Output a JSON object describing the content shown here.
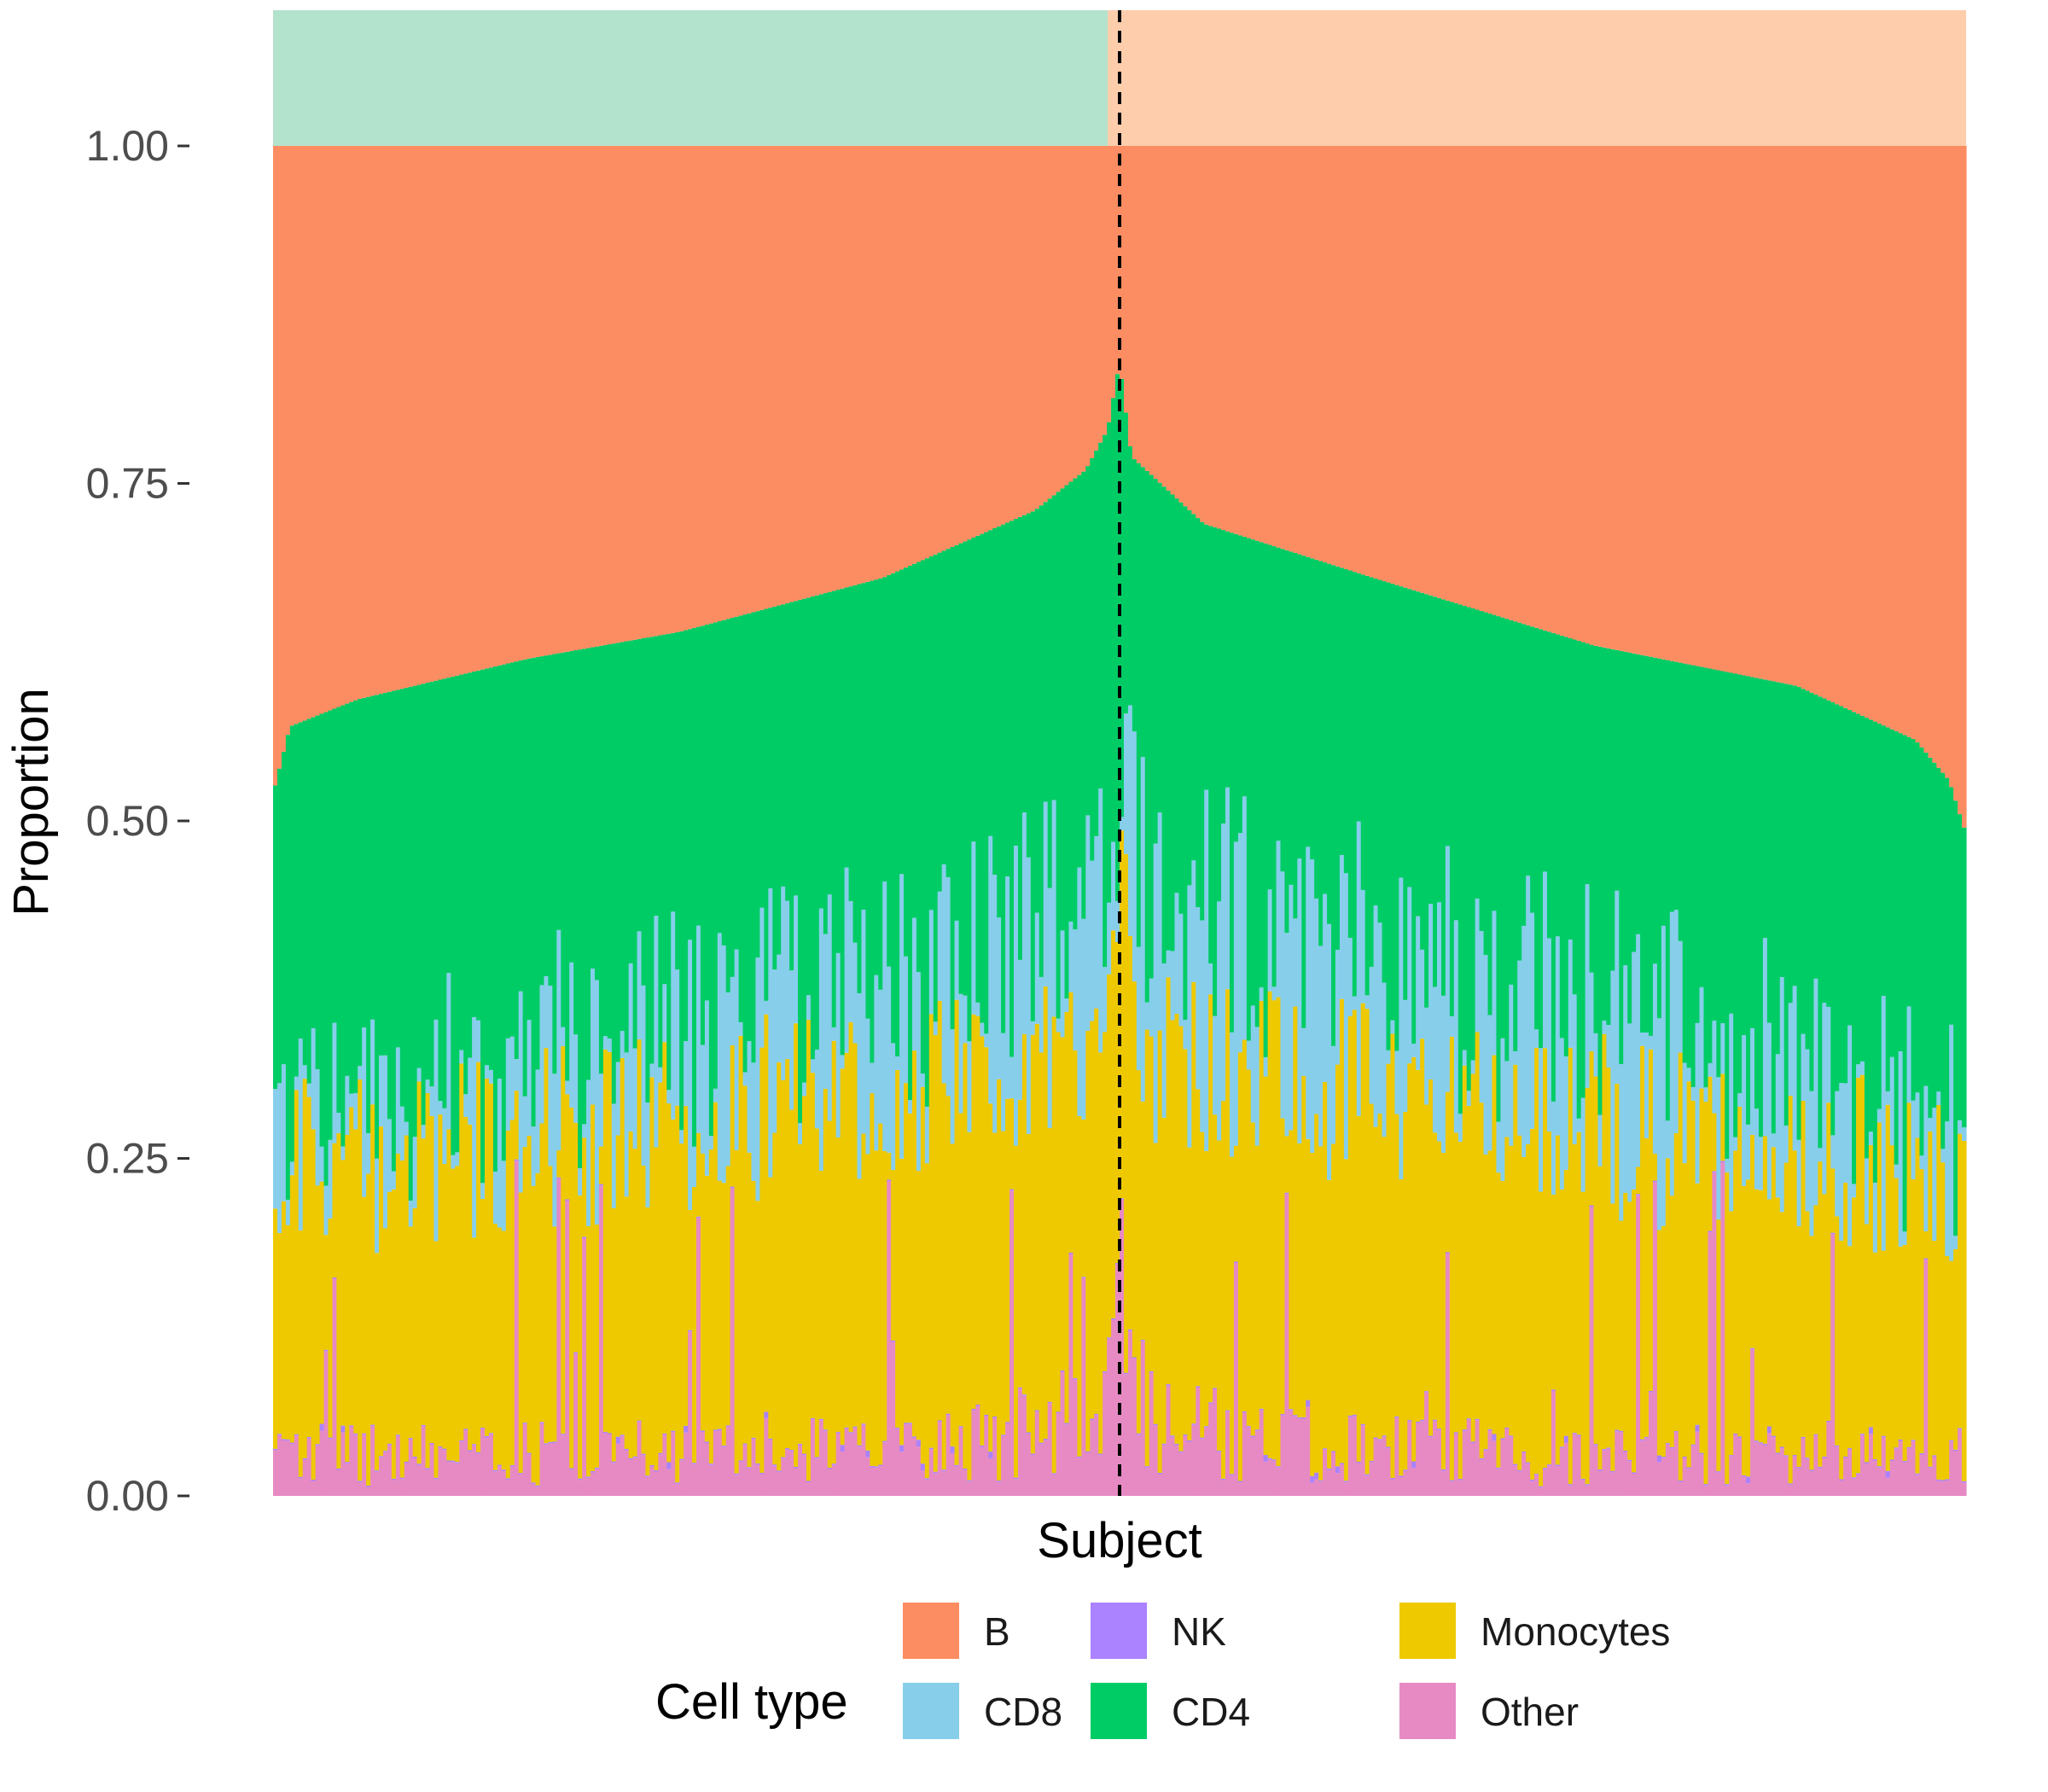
{
  "chart_data": {
    "type": "bar",
    "stacked": true,
    "title": "",
    "xlabel": "Subject",
    "ylabel": "Proportion",
    "ylim": [
      0,
      1
    ],
    "yticks": [
      0,
      0.25,
      0.5,
      0.75,
      1
    ],
    "ytick_labels": [
      "0.00",
      "0.25",
      "0.50",
      "0.75",
      "1.00"
    ],
    "grid": false,
    "legend": {
      "title": "Cell type",
      "position": "bottom"
    },
    "series": [
      {
        "name": "B",
        "color": "#FC8D62"
      },
      {
        "name": "CD4",
        "color": "#00CC66"
      },
      {
        "name": "CD8",
        "color": "#87CEEB"
      },
      {
        "name": "Monocytes",
        "color": "#EEC900"
      },
      {
        "name": "NK",
        "color": "#AB82FF"
      },
      {
        "name": "Other",
        "color": "#E78AC3"
      }
    ],
    "legend_order": [
      "B",
      "CD8",
      "NK",
      "CD4",
      "Monocytes",
      "Other"
    ],
    "group_bands": [
      {
        "color": "#B3E2CD",
        "fraction_of_subjects": 0.493
      },
      {
        "color": "#FDCDAC",
        "fraction_of_subjects": 0.507
      }
    ],
    "divider_at_fraction": 0.5,
    "n_subjects": 400,
    "profile_points": {
      "cd4_top": [
        [
          0,
          0.52
        ],
        [
          0.01,
          0.57
        ],
        [
          0.05,
          0.59
        ],
        [
          0.15,
          0.62
        ],
        [
          0.24,
          0.64
        ],
        [
          0.36,
          0.68
        ],
        [
          0.45,
          0.73
        ],
        [
          0.48,
          0.76
        ],
        [
          0.493,
          0.79
        ],
        [
          0.5,
          0.84
        ],
        [
          0.507,
          0.77
        ],
        [
          0.55,
          0.72
        ],
        [
          0.65,
          0.68
        ],
        [
          0.78,
          0.63
        ],
        [
          0.9,
          0.6
        ],
        [
          0.97,
          0.56
        ],
        [
          0.99,
          0.53
        ],
        [
          1.0,
          0.49
        ]
      ],
      "cd8_top": [
        [
          0,
          0.27
        ],
        [
          0.2,
          0.33
        ],
        [
          0.4,
          0.39
        ],
        [
          0.49,
          0.44
        ],
        [
          0.5,
          0.53
        ],
        [
          0.52,
          0.45
        ],
        [
          0.7,
          0.38
        ],
        [
          0.85,
          0.34
        ],
        [
          1.0,
          0.27
        ]
      ],
      "mono_top": [
        [
          0,
          0.24
        ],
        [
          0.2,
          0.27
        ],
        [
          0.4,
          0.31
        ],
        [
          0.49,
          0.35
        ],
        [
          0.5,
          0.44
        ],
        [
          0.52,
          0.32
        ],
        [
          0.75,
          0.28
        ],
        [
          1.0,
          0.23
        ]
      ],
      "other_top": [
        [
          0,
          0.02
        ],
        [
          0.4,
          0.025
        ],
        [
          0.49,
          0.04
        ],
        [
          0.5,
          0.08
        ],
        [
          0.52,
          0.035
        ],
        [
          0.75,
          0.02
        ],
        [
          1.0,
          0.02
        ]
      ]
    }
  }
}
